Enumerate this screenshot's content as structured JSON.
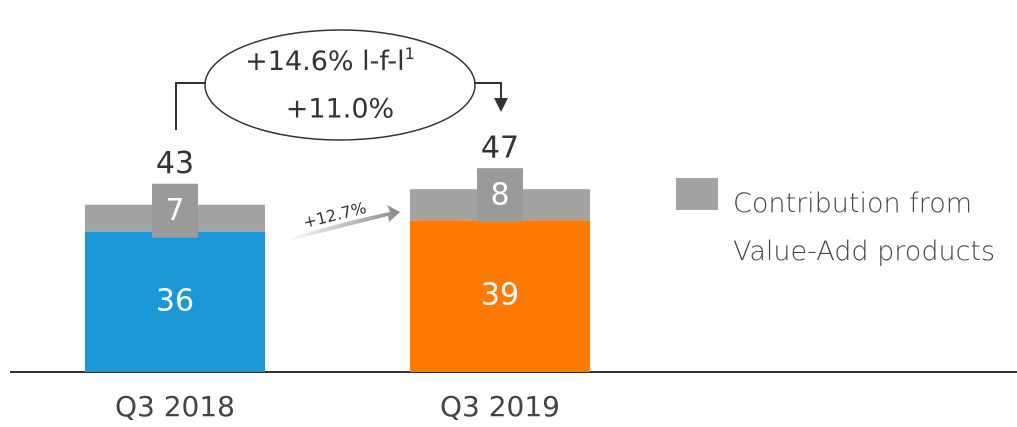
{
  "chart_data": {
    "type": "stacked_bar",
    "categories": [
      "Q3 2018",
      "Q3 2019"
    ],
    "series": [
      {
        "colors": [
          "#1a98d5",
          "#ff7a00"
        ],
        "values": [
          36,
          39
        ]
      },
      {
        "name": "Contribution from Value-Add products",
        "color": "#a3a3a3",
        "values": [
          7,
          8
        ]
      }
    ],
    "totals": [
      43,
      47
    ],
    "annotations": {
      "growth_lfl": "+14.6% l-f-l",
      "growth_lfl_note": "1",
      "growth": "+11.0%",
      "bar_growth": "+12.7%"
    }
  }
}
